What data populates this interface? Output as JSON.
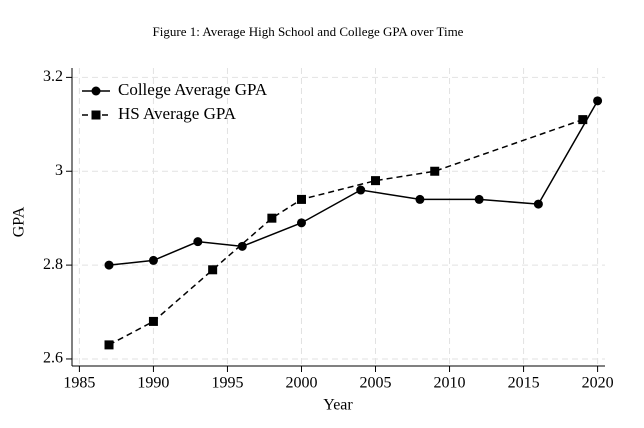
{
  "chart_data": {
    "type": "line",
    "title": "Figure 1: Average High School and College GPA over Time",
    "x_label": "Year",
    "y_label": "GPA",
    "series": [
      {
        "name": "College Average GPA",
        "color": "#000000",
        "marker": "circle",
        "dash": "solid",
        "x": [
          1987,
          1990,
          1993,
          1996,
          2000,
          2004,
          2008,
          2012,
          2016,
          2020
        ],
        "values": [
          2.8,
          2.81,
          2.85,
          2.84,
          2.89,
          2.96,
          2.94,
          2.94,
          2.93,
          3.15
        ]
      },
      {
        "name": "HS Average GPA",
        "color": "#000000",
        "marker": "square",
        "dash": "dashed",
        "x": [
          1987,
          1990,
          1994,
          1998,
          2000,
          2005,
          2009,
          2019
        ],
        "values": [
          2.63,
          2.68,
          2.79,
          2.9,
          2.94,
          2.98,
          3.0,
          3.11
        ]
      }
    ],
    "xlim": [
      1984.5,
      2020.5
    ],
    "xticks": [
      1985,
      1990,
      1995,
      2000,
      2005,
      2010,
      2015,
      2020
    ],
    "ylim": [
      2.585,
      3.22
    ],
    "yticks": [
      2.6,
      2.8,
      3,
      3.2
    ],
    "grid": true,
    "legend": "top-left"
  }
}
